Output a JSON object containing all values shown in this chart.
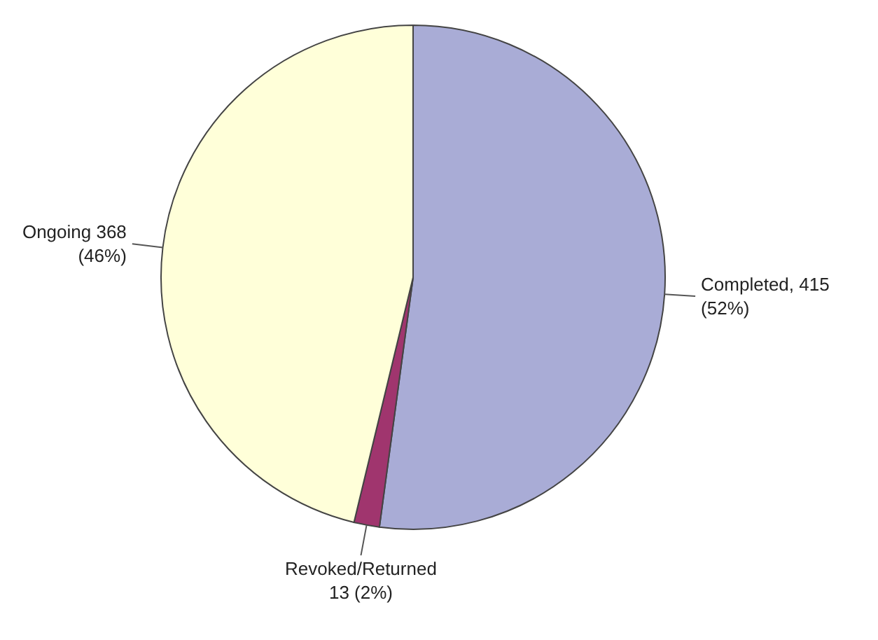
{
  "chart_data": {
    "type": "pie",
    "categories": [
      "Completed",
      "Revoked/Returned",
      "Ongoing"
    ],
    "values": [
      415,
      13,
      368
    ],
    "colors": [
      "#a9acd6",
      "#a0356e",
      "#ffffd9"
    ],
    "value_labels": [
      "415\n(52%)",
      "13 (2%)",
      "368\n(46%)"
    ]
  }
}
